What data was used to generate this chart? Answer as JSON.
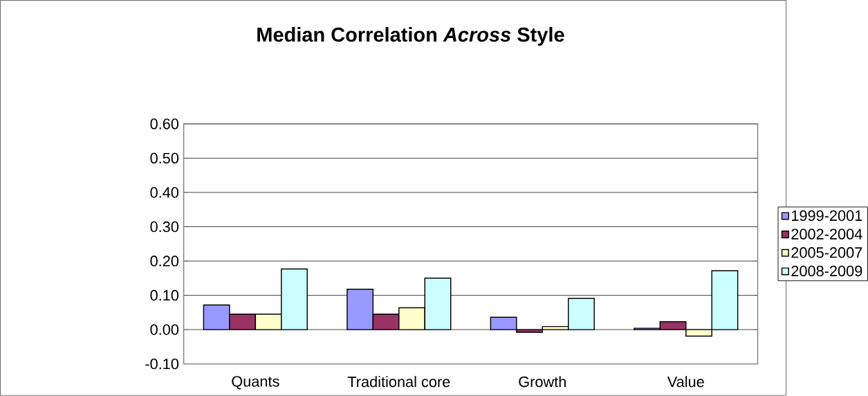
{
  "chart_data": {
    "type": "bar",
    "title": "Median Correlation *Across* Style",
    "categories": [
      "Quants",
      "Traditional core",
      "Growth",
      "Value"
    ],
    "series": [
      {
        "name": "1999-2001",
        "color": "#9999ff",
        "values": [
          0.072,
          0.118,
          0.036,
          0.004
        ]
      },
      {
        "name": "2002-2004",
        "color": "#993366",
        "values": [
          0.045,
          0.045,
          -0.008,
          0.023
        ]
      },
      {
        "name": "2005-2007",
        "color": "#ffffcc",
        "values": [
          0.045,
          0.064,
          0.009,
          -0.019
        ]
      },
      {
        "name": "2008-2009",
        "color": "#ccffff",
        "values": [
          0.177,
          0.15,
          0.091,
          0.172
        ]
      }
    ],
    "ylim": [
      -0.1,
      0.6
    ],
    "yticks": [
      {
        "value": -0.1,
        "label": "-0.10"
      },
      {
        "value": 0.0,
        "label": "0.00"
      },
      {
        "value": 0.1,
        "label": "0.10"
      },
      {
        "value": 0.2,
        "label": "0.20"
      },
      {
        "value": 0.3,
        "label": "0.30"
      },
      {
        "value": 0.4,
        "label": "0.40"
      },
      {
        "value": 0.5,
        "label": "0.50"
      },
      {
        "value": 0.6,
        "label": "0.60"
      }
    ],
    "grid": "y",
    "legend": "right"
  }
}
